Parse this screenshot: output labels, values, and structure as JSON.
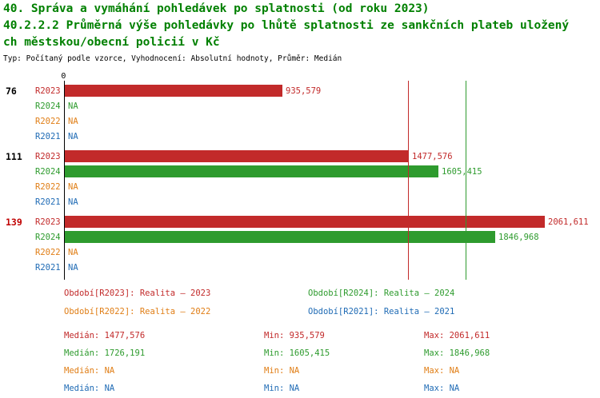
{
  "header": {
    "title_line1": "40. Správa a vymáhání pohledávek po splatnosti (od roku 2023)",
    "title_line2": "40.2.2.2 Průměrná výše pohledávky po lhůtě splatnosti ze sankčních plateb uložený",
    "title_line3": "ch městskou/obecní policií v Kč",
    "subtitle": "Typ: Počítaný podle vzorce, Vyhodnocení: Absolutní hodnoty, Průměr: Medián"
  },
  "colors": {
    "title_green": "#008000",
    "r2023_red": "#c22a2a",
    "r2024_green": "#2e9b2e",
    "r2022_orange": "#e07e16",
    "r2021_blue": "#1f6bb5",
    "axis_black": "#000000",
    "group_highlight_red": "#c00000"
  },
  "chart_data": {
    "type": "bar",
    "orientation": "horizontal",
    "x_origin_label": "0",
    "xmax": 2061.611,
    "grid": false,
    "series_colors": {
      "R2023": "#c22a2a",
      "R2024": "#2e9b2e",
      "R2022": "#e07e16",
      "R2021": "#1f6bb5"
    },
    "groups": [
      {
        "label": "76",
        "label_color": "#000000",
        "bars": [
          {
            "series": "R2023",
            "value": 935.579,
            "display": "935,579"
          },
          {
            "series": "R2024",
            "value": null,
            "display": "NA"
          },
          {
            "series": "R2022",
            "value": null,
            "display": "NA"
          },
          {
            "series": "R2021",
            "value": null,
            "display": "NA"
          }
        ]
      },
      {
        "label": "111",
        "label_color": "#000000",
        "bars": [
          {
            "series": "R2023",
            "value": 1477.576,
            "display": "1477,576"
          },
          {
            "series": "R2024",
            "value": 1605.415,
            "display": "1605,415"
          },
          {
            "series": "R2022",
            "value": null,
            "display": "NA"
          },
          {
            "series": "R2021",
            "value": null,
            "display": "NA"
          }
        ]
      },
      {
        "label": "139",
        "label_color": "#c00000",
        "bars": [
          {
            "series": "R2023",
            "value": 2061.611,
            "display": "2061,611"
          },
          {
            "series": "R2024",
            "value": 1846.968,
            "display": "1846,968"
          },
          {
            "series": "R2022",
            "value": null,
            "display": "NA"
          },
          {
            "series": "R2021",
            "value": null,
            "display": "NA"
          }
        ]
      }
    ],
    "reference_lines": [
      {
        "series": "R2023",
        "value": 1477.576,
        "color": "#c22a2a",
        "meaning": "median"
      },
      {
        "series": "R2024",
        "value": 1726.191,
        "color": "#2e9b2e",
        "meaning": "median"
      }
    ]
  },
  "legend": [
    {
      "text": "Období[R2023]: Realita – 2023",
      "color": "#c22a2a",
      "col": 0,
      "row": 0
    },
    {
      "text": "Období[R2024]: Realita – 2024",
      "color": "#2e9b2e",
      "col": 1,
      "row": 0
    },
    {
      "text": "Období[R2022]: Realita – 2022",
      "color": "#e07e16",
      "col": 0,
      "row": 1
    },
    {
      "text": "Období[R2021]: Realita – 2021",
      "color": "#1f6bb5",
      "col": 1,
      "row": 1
    }
  ],
  "stats": [
    {
      "color": "#c22a2a",
      "median": "Medián: 1477,576",
      "min": "Min: 935,579",
      "max": "Max: 2061,611"
    },
    {
      "color": "#2e9b2e",
      "median": "Medián: 1726,191",
      "min": "Min: 1605,415",
      "max": "Max: 1846,968"
    },
    {
      "color": "#e07e16",
      "median": "Medián: NA",
      "min": "Min: NA",
      "max": "Max: NA"
    },
    {
      "color": "#1f6bb5",
      "median": "Medián: NA",
      "min": "Min: NA",
      "max": "Max: NA"
    }
  ]
}
